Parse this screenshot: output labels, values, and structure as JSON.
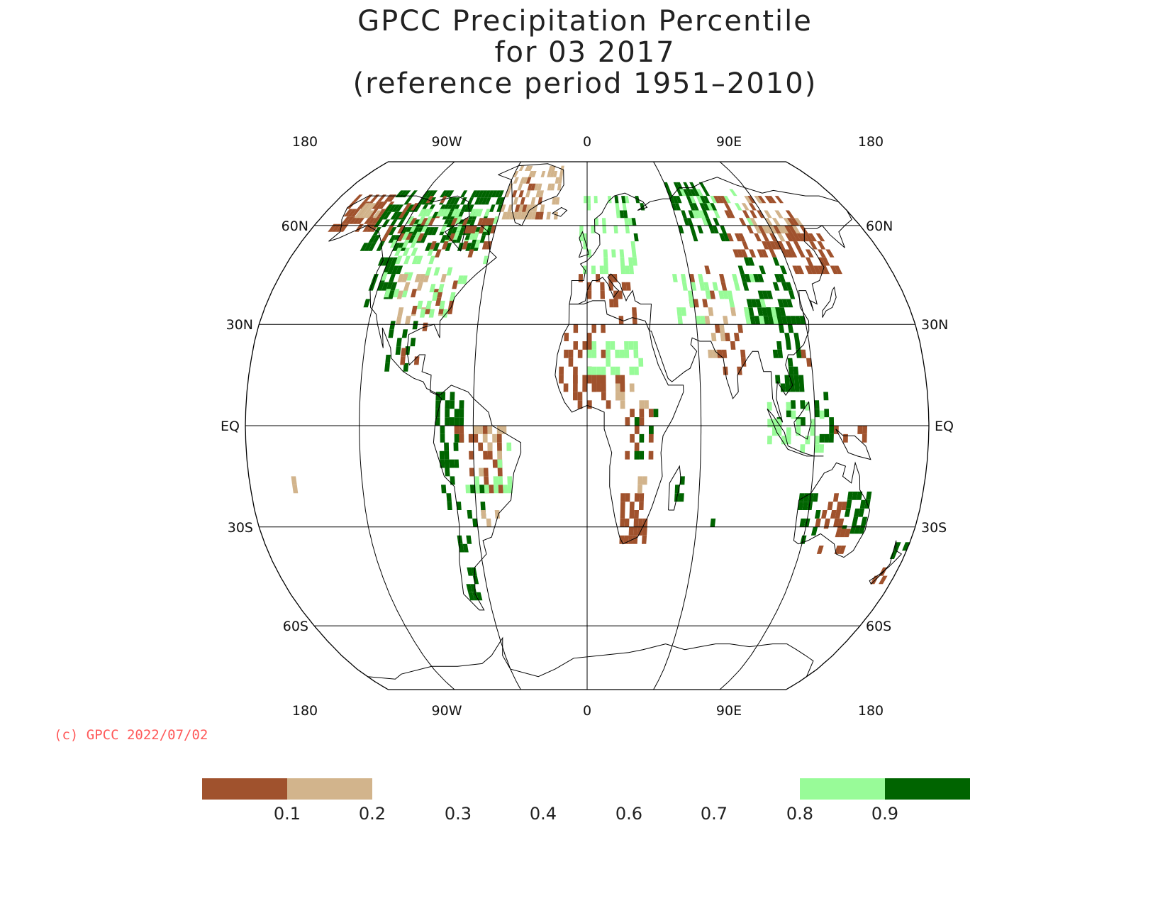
{
  "title": {
    "line1": "GPCC Precipitation Percentile",
    "line2": "for 03 2017",
    "line3": "(reference period 1951–2010)"
  },
  "lon_labels": [
    "180",
    "90W",
    "0",
    "90E",
    "180"
  ],
  "lat_labels": {
    "n60": "60N",
    "n30": "30N",
    "eq": "EQ",
    "s30": "30S",
    "s60": "60S"
  },
  "copyright": "(c) GPCC 2022/07/02",
  "legend": {
    "tick_labels": [
      "0.1",
      "0.2",
      "0.3",
      "0.4",
      "0.6",
      "0.7",
      "0.8",
      "0.9"
    ],
    "colors": {
      "below_0_1": "#a0522d",
      "range_0_1_0_2": "#d2b48c",
      "range_0_8_0_9": "#98fb98",
      "above_0_9": "#006400"
    }
  },
  "map_data": {
    "projection": "robinson",
    "central_longitude": 0,
    "variable": "precipitation percentile",
    "month": "03",
    "year": "2017",
    "categories": [
      {
        "range": "<0.1",
        "color": "#a0522d"
      },
      {
        "range": "0.1-0.2",
        "color": "#d2b48c"
      },
      {
        "range": "0.2-0.8",
        "color": "none"
      },
      {
        "range": "0.8-0.9",
        "color": "#98fb98"
      },
      {
        "range": ">0.9",
        "color": "#006400"
      }
    ],
    "regions": [
      {
        "area": "Alaska",
        "category": "<0.1"
      },
      {
        "area": "Canada",
        "category": ">0.9"
      },
      {
        "area": "Greenland",
        "category": "0.1-0.2"
      },
      {
        "area": "Western USA",
        "category": ">0.9"
      },
      {
        "area": "Mexico",
        "category": ">0.9"
      },
      {
        "area": "Northern South America",
        "category": ">0.9"
      },
      {
        "area": "Brazil",
        "category": "<0.1"
      },
      {
        "area": "Patagonia",
        "category": ">0.9"
      },
      {
        "area": "Europe",
        "category": "0.8-0.9"
      },
      {
        "area": "North Africa",
        "category": "<0.1"
      },
      {
        "area": "Sahel",
        "category": "0.8-0.9"
      },
      {
        "area": "Southern Africa",
        "category": "<0.1"
      },
      {
        "area": "Madagascar",
        "category": ">0.9"
      },
      {
        "area": "Western Siberia",
        "category": ">0.9"
      },
      {
        "area": "Eastern Siberia",
        "category": "<0.1"
      },
      {
        "area": "Central Asia",
        "category": "0.1-0.2"
      },
      {
        "area": "China",
        "category": ">0.9"
      },
      {
        "area": "India",
        "category": "<0.1"
      },
      {
        "area": "Southeast Asia",
        "category": ">0.9"
      },
      {
        "area": "Indonesia",
        "category": "0.8-0.9"
      },
      {
        "area": "Western Australia",
        "category": ">0.9"
      },
      {
        "area": "Central Australia",
        "category": "<0.1"
      },
      {
        "area": "Eastern Australia",
        "category": ">0.9"
      },
      {
        "area": "New Zealand",
        "category": "<0.1"
      }
    ]
  }
}
